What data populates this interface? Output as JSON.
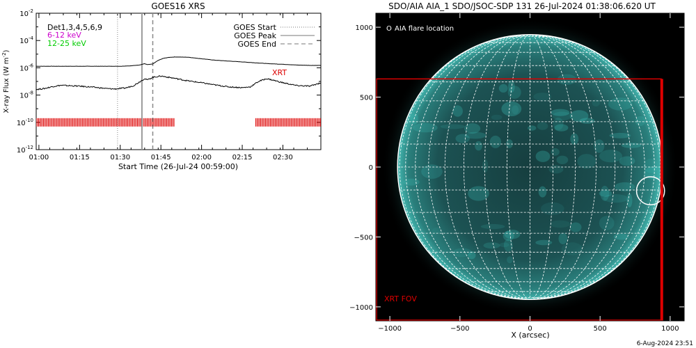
{
  "chart_data": [
    {
      "type": "line",
      "title": "GOES16 XRS",
      "xlabel": "Start Time (26-Jul-24 00:59:00)",
      "ylabel_main": "X-ray Flux (W m",
      "ylabel_sup": "-2",
      "ylabel_tail": ")",
      "y_scale": "log",
      "ylim": [
        1e-12,
        0.01
      ],
      "xlim": [
        "00:59",
        "02:44"
      ],
      "x_ticks": [
        "01:00",
        "01:15",
        "01:30",
        "01:45",
        "02:00",
        "02:15",
        "02:30"
      ],
      "y_ticks": [
        {
          "base": "10",
          "exp": "-2"
        },
        {
          "base": "10",
          "exp": "-4"
        },
        {
          "base": "10",
          "exp": "-6"
        },
        {
          "base": "10",
          "exp": "-8"
        },
        {
          "base": "10",
          "exp": "-10"
        },
        {
          "base": "10",
          "exp": "-12"
        }
      ],
      "channel_labels": [
        {
          "text": "Det1,3,4,5,6,9",
          "color": "#000000"
        },
        {
          "text": "6-12 keV",
          "color": "#cc00cc"
        },
        {
          "text": "12-25 keV",
          "color": "#00cc00"
        }
      ],
      "legend_placement": "top-right",
      "legend": [
        {
          "label": "GOES Start",
          "style": "dotted"
        },
        {
          "label": "GOES Peak",
          "style": "solid"
        },
        {
          "label": "GOES End",
          "style": "dashed"
        }
      ],
      "events": {
        "goes_start": "01:29",
        "goes_peak": "01:38",
        "goes_end": "01:42"
      },
      "annotation": {
        "text": "XRT",
        "color": "#dd0000"
      },
      "series": [
        {
          "name": "",
          "color": "#000000",
          "x": [
            "00:59",
            "01:05",
            "01:10",
            "01:15",
            "01:20",
            "01:25",
            "01:30",
            "01:34",
            "01:37",
            "01:39",
            "01:40",
            "01:42",
            "01:44",
            "01:46",
            "01:48",
            "01:50",
            "01:55",
            "02:00",
            "02:05",
            "02:10",
            "02:15",
            "02:20",
            "02:25",
            "02:30",
            "02:35",
            "02:40",
            "02:44"
          ],
          "y": [
            1.3e-06,
            1.3e-06,
            1.3e-06,
            1.3e-06,
            1.3e-06,
            1.3e-06,
            1.3e-06,
            1.4e-06,
            1.6e-06,
            2e-06,
            1.7e-06,
            1.9e-06,
            3.5e-06,
            5e-06,
            5.8e-06,
            6.2e-06,
            6e-06,
            4.6e-06,
            3.6e-06,
            3.1e-06,
            2.7e-06,
            2.3e-06,
            2e-06,
            1.8e-06,
            1.6e-06,
            1.5e-06,
            1.5e-06
          ]
        },
        {
          "name": "",
          "color": "#000000",
          "x": [
            "00:59",
            "01:02",
            "01:05",
            "01:08",
            "01:10",
            "01:15",
            "01:20",
            "01:25",
            "01:28",
            "01:32",
            "01:35",
            "01:38",
            "01:39",
            "01:40",
            "01:42",
            "01:45",
            "01:50",
            "01:55",
            "02:00",
            "02:05",
            "02:10",
            "02:15",
            "02:18",
            "02:21",
            "02:24",
            "02:26",
            "02:30",
            "02:35",
            "02:40",
            "02:44"
          ],
          "y": [
            2.6e-08,
            3e-08,
            4.2e-08,
            5.2e-08,
            5e-08,
            4.5e-08,
            3.8e-08,
            3e-08,
            2.8e-08,
            3.3e-08,
            5e-08,
            1.2e-07,
            1.6e-07,
            1.3e-07,
            2e-07,
            2.5e-07,
            1.7e-07,
            1.1e-07,
            8e-08,
            5.5e-08,
            4e-08,
            3.5e-08,
            4e-08,
            1e-07,
            1.6e-07,
            1.3e-07,
            8e-08,
            5e-08,
            4.5e-08,
            8e-08
          ]
        }
      ],
      "coverage_color": "#dd0000",
      "coverage_intervals": [
        [
          "00:59",
          "01:50"
        ],
        [
          "02:20",
          "02:44"
        ]
      ]
    },
    {
      "type": "image",
      "title": "SDO/AIA AIA_1 SDO/JSOC-SDP 131 26-Jul-2024 01:38:06.620 UT",
      "xlabel": "X (arcsec)",
      "ylabel": "",
      "xlim": [
        -1100,
        1100
      ],
      "ylim": [
        -1100,
        1100
      ],
      "x_ticks": [
        -1000,
        -500,
        0,
        500,
        1000
      ],
      "y_ticks": [
        1000,
        500,
        0,
        -500,
        -1000
      ],
      "x_tick_labels": [
        "−1000",
        "−500",
        "0",
        "500",
        "1000"
      ],
      "y_tick_labels": [
        "1000",
        "500",
        "0",
        "−500",
        "−1000"
      ],
      "sun_radius_arcsec": 945,
      "legend_entry": {
        "symbol": "O",
        "label": "AIA flare location"
      },
      "flare_location": {
        "x": 860,
        "y": -170,
        "r": 100
      },
      "xrt_fov": {
        "label": "XRT FOV",
        "color": "#dd0000",
        "x": [
          -1100,
          940
        ],
        "y": [
          -1100,
          630
        ]
      },
      "disk_color": "#1f5c5a",
      "glow_color": "#3ec8c0",
      "background_color": "#000000"
    }
  ],
  "footer": {
    "timestamp": "6-Aug-2024 23:51"
  }
}
